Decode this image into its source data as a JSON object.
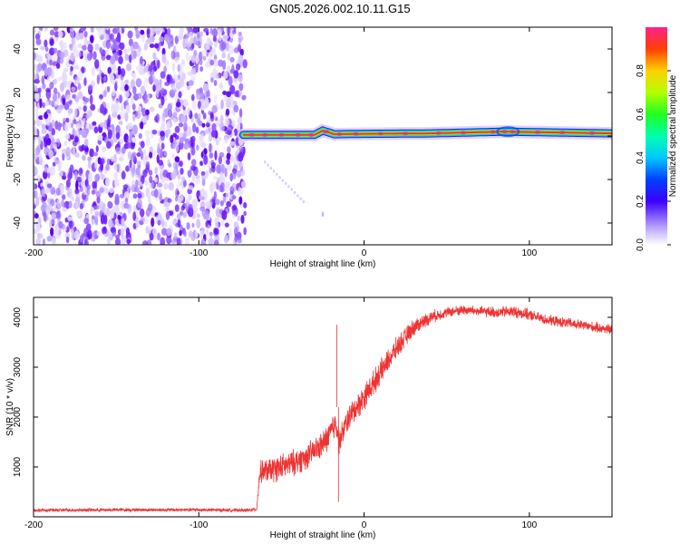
{
  "title": "GN05.2026.002.10.11.G15",
  "colors": {
    "axis": "#000000",
    "snr_line": "#ee3333",
    "noise_purple": "#7a2cff"
  },
  "chart_data": [
    {
      "type": "heatmap",
      "name": "spectrogram",
      "xlabel": "Height of straight line (km)",
      "ylabel": "Frequency (Hz)",
      "xlim": [
        -200,
        150
      ],
      "ylim": [
        -50,
        50
      ],
      "xticks": [
        -200,
        -100,
        0,
        100
      ],
      "yticks": [
        -40,
        -20,
        0,
        20,
        40
      ],
      "noise_region_x": [
        -200,
        -72
      ],
      "signal_trace": [
        {
          "x": -73,
          "f": 0.5,
          "amp": 0.85
        },
        {
          "x": -30,
          "f": 0.5,
          "amp": 0.95
        },
        {
          "x": -25,
          "f": 2.5,
          "amp": 0.85
        },
        {
          "x": -18,
          "f": 0.8,
          "amp": 0.95
        },
        {
          "x": 0,
          "f": 1.0,
          "amp": 0.95
        },
        {
          "x": 40,
          "f": 1.2,
          "amp": 0.95
        },
        {
          "x": 85,
          "f": 2.0,
          "amp": 1.0
        },
        {
          "x": 150,
          "f": 1.2,
          "amp": 0.95
        }
      ],
      "colorbar": {
        "label": "Normalized spectral amplitude",
        "ticks": [
          0.0,
          0.2,
          0.4,
          0.6,
          0.8
        ],
        "tick_labels": [
          "0.0",
          "0.2",
          "0.4",
          "0.6",
          "0.8"
        ],
        "range": [
          0,
          1
        ]
      }
    },
    {
      "type": "line",
      "name": "snr",
      "xlabel": "Height of straight line (km)",
      "ylabel": "SNR (10 * v/v)",
      "xlim": [
        -200,
        150
      ],
      "ylim": [
        0,
        4400
      ],
      "xticks": [
        -200,
        -100,
        0,
        100
      ],
      "yticks": [
        1000,
        2000,
        3000,
        4000
      ],
      "series": [
        {
          "name": "SNR",
          "x": [
            -200,
            -150,
            -100,
            -70,
            -65,
            -63,
            -55,
            -45,
            -35,
            -25,
            -20,
            -17,
            -15,
            -10,
            0,
            10,
            20,
            30,
            40,
            50,
            60,
            70,
            80,
            90,
            100,
            110,
            120,
            130,
            140,
            150
          ],
          "y": [
            130,
            140,
            140,
            130,
            150,
            900,
            950,
            1050,
            1200,
            1450,
            1700,
            1900,
            1500,
            1950,
            2400,
            2900,
            3400,
            3800,
            4000,
            4100,
            4150,
            4120,
            4100,
            4120,
            4050,
            3950,
            3900,
            3850,
            3800,
            3750
          ],
          "noise_amplitude": [
            40,
            40,
            40,
            40,
            40,
            250,
            300,
            300,
            300,
            300,
            350,
            350,
            300,
            300,
            300,
            280,
            250,
            200,
            150,
            120,
            120,
            120,
            130,
            140,
            130,
            120,
            120,
            120,
            120,
            120
          ]
        }
      ],
      "annotations": [
        {
          "x": -16.5,
          "y": 3850,
          "text": ""
        },
        {
          "x": -15.5,
          "y": 300,
          "text": ""
        }
      ]
    }
  ]
}
